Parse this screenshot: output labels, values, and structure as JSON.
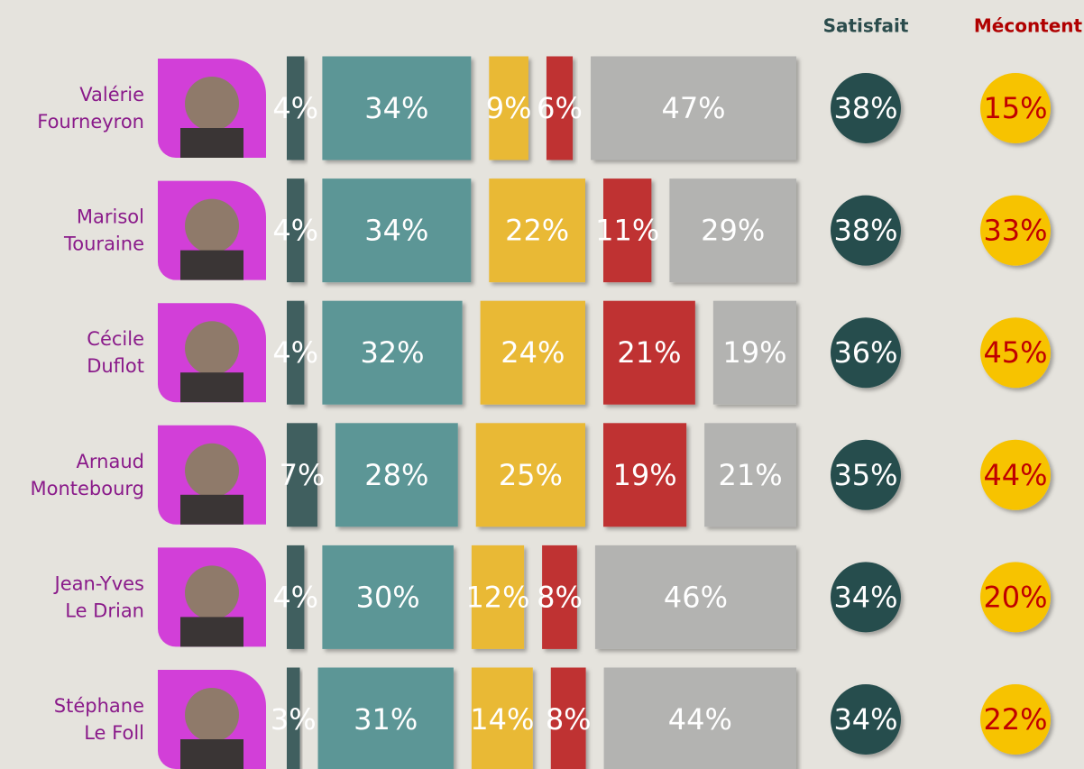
{
  "chart_data": {
    "type": "bar",
    "orientation": "horizontal",
    "stacked": true,
    "categories": [
      [
        "Valérie",
        "Fourneyron"
      ],
      [
        "Marisol",
        "Touraine"
      ],
      [
        "Cécile",
        "Duflot"
      ],
      [
        "Arnaud",
        "Montebourg"
      ],
      [
        "Jean-Yves",
        "Le Drian"
      ],
      [
        "Stéphane",
        "Le Foll"
      ]
    ],
    "series": [
      {
        "color": "#3f5e5e",
        "values": [
          4,
          4,
          4,
          7,
          4,
          3
        ],
        "value_labels": [
          "4%",
          "4%",
          "4%",
          "7%",
          "4%",
          "3%"
        ]
      },
      {
        "color": "#5b9696",
        "values": [
          34,
          34,
          32,
          28,
          30,
          31
        ],
        "value_labels": [
          "34%",
          "34%",
          "32%",
          "28%",
          "30%",
          "31%"
        ]
      },
      {
        "color": "#e9b934",
        "values": [
          9,
          22,
          24,
          25,
          12,
          14
        ],
        "value_labels": [
          "9%",
          "22%",
          "24%",
          "25%",
          "12%",
          "14%"
        ]
      },
      {
        "color": "#bf3232",
        "values": [
          6,
          11,
          21,
          19,
          8,
          8
        ],
        "value_labels": [
          "6%",
          "11%",
          "21%",
          "19%",
          "8%",
          "8%"
        ]
      },
      {
        "color": "#b3b3b1",
        "values": [
          47,
          29,
          19,
          21,
          46,
          44
        ],
        "value_labels": [
          "47%",
          "29%",
          "19%",
          "21%",
          "46%",
          "44%"
        ]
      }
    ],
    "satisfait": {
      "label": "Satisfait",
      "color": "#274d4d",
      "label_color": "#2b4c4c",
      "text_color": "#ffffff",
      "values": [
        38,
        38,
        36,
        35,
        34,
        34
      ],
      "value_labels": [
        "38%",
        "38%",
        "36%",
        "35%",
        "34%",
        "34%"
      ]
    },
    "mecontent": {
      "label": "Mécontent",
      "color": "#f7c300",
      "label_color": "#b00000",
      "text_color": "#c00000",
      "values": [
        15,
        33,
        45,
        44,
        20,
        22
      ],
      "value_labels": [
        "15%",
        "33%",
        "45%",
        "44%",
        "20%",
        "22%"
      ]
    }
  }
}
